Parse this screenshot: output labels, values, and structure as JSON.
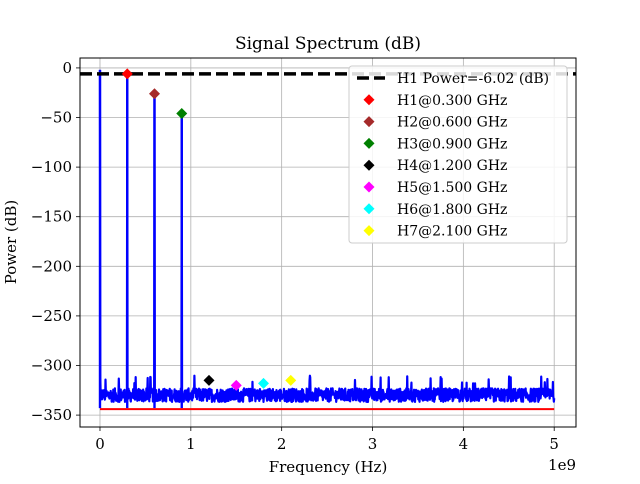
{
  "chart_data": {
    "type": "line",
    "title": "Signal Spectrum (dB)",
    "xlabel": "Frequency (Hz)",
    "ylabel": "Power (dB)",
    "x_multiplier_label": "1e9",
    "xlim": [
      -0.22,
      5.24
    ],
    "ylim": [
      -362,
      10
    ],
    "x_scale_factor": 1000000000.0,
    "x_ticks": [
      0,
      1,
      2,
      3,
      4,
      5
    ],
    "x_tick_labels": [
      "0",
      "1",
      "2",
      "3",
      "4",
      "5"
    ],
    "y_ticks": [
      0,
      -50,
      -100,
      -150,
      -200,
      -250,
      -300,
      -350
    ],
    "y_tick_labels": [
      "0",
      "−50",
      "−100",
      "−150",
      "−200",
      "−250",
      "−300",
      "−350"
    ],
    "grid": true,
    "legend_position": "top-right",
    "reference_line": {
      "label": "H1 Power=-6.02 (dB)",
      "y": -6.02,
      "color": "#000000",
      "style": "dashed"
    },
    "series": [
      {
        "name": "spectrum",
        "color": "#0000ff",
        "noise_floor_range": [
          -343,
          -318
        ],
        "peaks": [
          {
            "x": 0.0,
            "y": -2
          },
          {
            "x": 0.3,
            "y": -6.02
          },
          {
            "x": 0.6,
            "y": -26
          },
          {
            "x": 0.9,
            "y": -46
          }
        ]
      },
      {
        "name": "baseline",
        "color": "#ff0000",
        "x": [
          0.0,
          5.0
        ],
        "y": [
          -344,
          -344
        ]
      }
    ],
    "markers": [
      {
        "label": "H1@0.300 GHz",
        "x": 0.3,
        "y": -6,
        "color": "#ff0000"
      },
      {
        "label": "H2@0.600 GHz",
        "x": 0.6,
        "y": -26,
        "color": "#a52a2a"
      },
      {
        "label": "H3@0.900 GHz",
        "x": 0.9,
        "y": -46,
        "color": "#008000"
      },
      {
        "label": "H4@1.200 GHz",
        "x": 1.2,
        "y": -315,
        "color": "#000000"
      },
      {
        "label": "H5@1.500 GHz",
        "x": 1.5,
        "y": -320,
        "color": "#ff00ff"
      },
      {
        "label": "H6@1.800 GHz",
        "x": 1.8,
        "y": -318,
        "color": "#00ffff"
      },
      {
        "label": "H7@2.100 GHz",
        "x": 2.1,
        "y": -315,
        "color": "#ffff00"
      }
    ]
  }
}
